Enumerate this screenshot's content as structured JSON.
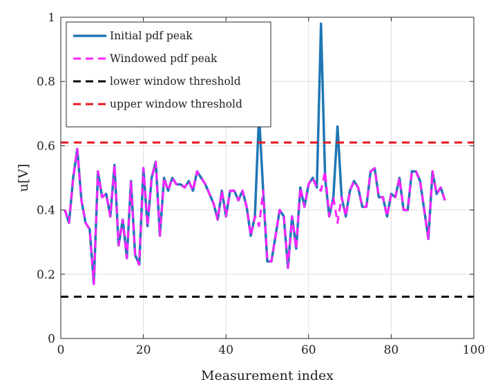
{
  "chart_data": {
    "type": "line",
    "xlabel": "Measurement index",
    "ylabel": "u[V]",
    "xlim": [
      0,
      100
    ],
    "ylim": [
      0,
      1
    ],
    "xticks": [
      0,
      20,
      40,
      60,
      80,
      100
    ],
    "yticks": [
      0,
      0.2,
      0.4,
      0.6,
      0.8,
      1
    ],
    "xtick_labels": [
      "0",
      "20",
      "40",
      "60",
      "80",
      "100"
    ],
    "ytick_labels": [
      "0",
      "0.2",
      "0.4",
      "0.6",
      "0.8",
      "1"
    ],
    "grid": true,
    "legend_position": "top-left",
    "series": [
      {
        "name": "Initial pdf peak",
        "color": "#1f77b4",
        "style": "solid",
        "x": [
          1,
          2,
          3,
          4,
          5,
          6,
          7,
          8,
          9,
          10,
          11,
          12,
          13,
          14,
          15,
          16,
          17,
          18,
          19,
          20,
          21,
          22,
          23,
          24,
          25,
          26,
          27,
          28,
          29,
          30,
          31,
          32,
          33,
          34,
          35,
          36,
          37,
          38,
          39,
          40,
          41,
          42,
          43,
          44,
          45,
          46,
          47,
          48,
          49,
          50,
          51,
          52,
          53,
          54,
          55,
          56,
          57,
          58,
          59,
          60,
          61,
          62,
          63,
          64,
          65,
          66,
          67,
          68,
          69,
          70,
          71,
          72,
          73,
          74,
          75,
          76,
          77,
          78,
          79,
          80,
          81,
          82,
          83,
          84,
          85,
          86,
          87,
          88,
          89,
          90,
          91,
          92,
          93
        ],
        "y": [
          0.4,
          0.36,
          0.5,
          0.59,
          0.43,
          0.36,
          0.34,
          0.17,
          0.52,
          0.44,
          0.45,
          0.38,
          0.54,
          0.29,
          0.37,
          0.25,
          0.49,
          0.26,
          0.23,
          0.53,
          0.35,
          0.5,
          0.55,
          0.32,
          0.5,
          0.46,
          0.5,
          0.48,
          0.48,
          0.47,
          0.49,
          0.46,
          0.52,
          0.5,
          0.48,
          0.45,
          0.42,
          0.37,
          0.46,
          0.38,
          0.46,
          0.46,
          0.43,
          0.46,
          0.41,
          0.32,
          0.38,
          0.7,
          0.46,
          0.24,
          0.24,
          0.32,
          0.4,
          0.38,
          0.22,
          0.38,
          0.28,
          0.47,
          0.41,
          0.48,
          0.5,
          0.47,
          0.98,
          0.5,
          0.38,
          0.44,
          0.66,
          0.44,
          0.38,
          0.46,
          0.49,
          0.47,
          0.41,
          0.41,
          0.52,
          0.53,
          0.44,
          0.44,
          0.38,
          0.45,
          0.44,
          0.5,
          0.4,
          0.4,
          0.52,
          0.52,
          0.49,
          0.4,
          0.31,
          0.52,
          0.45,
          0.47,
          0.43
        ]
      },
      {
        "name": "Windowed pdf peak",
        "color": "#ff22ff",
        "style": "dashed",
        "x": [
          1,
          2,
          3,
          4,
          5,
          6,
          7,
          8,
          9,
          10,
          11,
          12,
          13,
          14,
          15,
          16,
          17,
          18,
          19,
          20,
          21,
          22,
          23,
          24,
          25,
          26,
          27,
          28,
          29,
          30,
          31,
          32,
          33,
          34,
          35,
          36,
          37,
          38,
          39,
          40,
          41,
          42,
          43,
          44,
          45,
          46,
          47,
          48,
          49,
          50,
          51,
          52,
          53,
          54,
          55,
          56,
          57,
          58,
          59,
          60,
          61,
          62,
          63,
          64,
          65,
          66,
          67,
          68,
          69,
          70,
          71,
          72,
          73,
          74,
          75,
          76,
          77,
          78,
          79,
          80,
          81,
          82,
          83,
          84,
          85,
          86,
          87,
          88,
          89,
          90,
          91,
          92,
          93
        ],
        "y": [
          0.4,
          0.36,
          0.5,
          0.59,
          0.43,
          0.36,
          0.34,
          0.17,
          0.52,
          0.44,
          0.45,
          0.38,
          0.54,
          0.29,
          0.37,
          0.25,
          0.49,
          0.26,
          0.23,
          0.53,
          0.35,
          0.5,
          0.55,
          0.32,
          0.5,
          0.46,
          0.5,
          0.48,
          0.48,
          0.47,
          0.49,
          0.46,
          0.52,
          0.5,
          0.48,
          0.45,
          0.42,
          0.37,
          0.46,
          0.38,
          0.46,
          0.46,
          0.43,
          0.46,
          0.41,
          0.32,
          0.38,
          0.35,
          0.46,
          0.24,
          0.24,
          0.32,
          0.4,
          0.38,
          0.22,
          0.38,
          0.28,
          0.47,
          0.41,
          0.48,
          0.5,
          0.47,
          0.46,
          0.52,
          0.38,
          0.44,
          0.36,
          0.44,
          0.38,
          0.46,
          0.49,
          0.47,
          0.41,
          0.41,
          0.52,
          0.53,
          0.44,
          0.44,
          0.38,
          0.45,
          0.44,
          0.5,
          0.4,
          0.4,
          0.52,
          0.52,
          0.49,
          0.4,
          0.31,
          0.52,
          0.45,
          0.47,
          0.43
        ]
      },
      {
        "name": "lower window threshold",
        "color": "#000000",
        "style": "dashed",
        "x": [
          0,
          100
        ],
        "y": [
          0.13,
          0.13
        ]
      },
      {
        "name": "upper window threshold",
        "color": "#e8141c",
        "style": "dashed",
        "x": [
          0,
          100
        ],
        "y": [
          0.61,
          0.61
        ]
      }
    ]
  }
}
